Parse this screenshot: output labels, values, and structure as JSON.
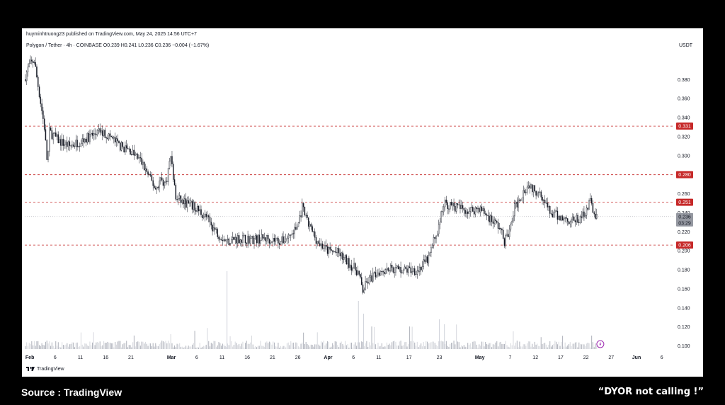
{
  "header": {
    "publish_line": "huyminhtruong23 published on TradingView.com, May 24, 2025 14:56 UTC+7",
    "symbol_line": "Polygon / Tether · 4h · COINBASE  O0.239  H0.241  L0.236  C0.236  −0.004 (−1.67%)",
    "currency": "USDT"
  },
  "footer": {
    "source": "Source : TradingView",
    "disclaimer": "“DYOR  not calling !”",
    "logo_text": "TradingView"
  },
  "chart_data": {
    "type": "candlestick",
    "symbol": "Polygon / Tether",
    "interval": "4h",
    "exchange": "COINBASE",
    "last_ohlc": {
      "open": 0.239,
      "high": 0.241,
      "low": 0.236,
      "close": 0.236,
      "change": -0.004,
      "change_pct": -1.67
    },
    "ylim": [
      0.09,
      0.41
    ],
    "y_ticks": [
      0.1,
      0.12,
      0.14,
      0.16,
      0.18,
      0.2,
      0.22,
      0.24,
      0.26,
      0.28,
      0.3,
      0.32,
      0.34,
      0.36,
      0.38
    ],
    "y_tick_labels": [
      "0.100",
      "0.120",
      "0.140",
      "0.160",
      "0.180",
      "0.200",
      "0.220",
      "0.240",
      "0.260",
      "0.280",
      "0.300",
      "0.320",
      "0.340",
      "0.360",
      "0.380"
    ],
    "x_range": [
      "2025-01-31",
      "2025-06-08"
    ],
    "x_ticks": [
      {
        "date": "2025-02-01",
        "label": "Feb",
        "bold": true
      },
      {
        "date": "2025-02-06",
        "label": "6"
      },
      {
        "date": "2025-02-11",
        "label": "11"
      },
      {
        "date": "2025-02-16",
        "label": "16"
      },
      {
        "date": "2025-02-21",
        "label": "21"
      },
      {
        "date": "2025-03-01",
        "label": "Mar",
        "bold": true
      },
      {
        "date": "2025-03-06",
        "label": "6"
      },
      {
        "date": "2025-03-11",
        "label": "11"
      },
      {
        "date": "2025-03-16",
        "label": "16"
      },
      {
        "date": "2025-03-21",
        "label": "21"
      },
      {
        "date": "2025-03-26",
        "label": "26"
      },
      {
        "date": "2025-04-01",
        "label": "Apr",
        "bold": true
      },
      {
        "date": "2025-04-06",
        "label": "6"
      },
      {
        "date": "2025-04-11",
        "label": "11"
      },
      {
        "date": "2025-04-17",
        "label": "17"
      },
      {
        "date": "2025-04-23",
        "label": "23"
      },
      {
        "date": "2025-05-01",
        "label": "May",
        "bold": true
      },
      {
        "date": "2025-05-07",
        "label": "7"
      },
      {
        "date": "2025-05-12",
        "label": "12"
      },
      {
        "date": "2025-05-17",
        "label": "17"
      },
      {
        "date": "2025-05-22",
        "label": "22"
      },
      {
        "date": "2025-05-27",
        "label": "27"
      },
      {
        "date": "2025-06-01",
        "label": "Jun",
        "bold": true
      },
      {
        "date": "2025-06-06",
        "label": "6"
      }
    ],
    "horizontal_levels": [
      {
        "value": 0.331,
        "label": "0.331",
        "color": "#c62828"
      },
      {
        "value": 0.28,
        "label": "0.280",
        "color": "#c62828"
      },
      {
        "value": 0.251,
        "label": "0.251",
        "color": "#c62828"
      },
      {
        "value": 0.206,
        "label": "0.206",
        "color": "#c62828"
      }
    ],
    "last_price": {
      "value": 0.236,
      "label": "0.236",
      "countdown": "03:29"
    },
    "price_path": [
      {
        "date": "2025-01-31",
        "price": 0.38
      },
      {
        "date": "2025-02-01",
        "price": 0.395
      },
      {
        "date": "2025-02-02",
        "price": 0.4
      },
      {
        "date": "2025-02-03",
        "price": 0.365
      },
      {
        "date": "2025-02-04",
        "price": 0.33
      },
      {
        "date": "2025-02-04.6",
        "price": 0.29
      },
      {
        "date": "2025-02-05",
        "price": 0.325
      },
      {
        "date": "2025-02-07",
        "price": 0.315
      },
      {
        "date": "2025-02-09",
        "price": 0.31
      },
      {
        "date": "2025-02-11",
        "price": 0.315
      },
      {
        "date": "2025-02-13",
        "price": 0.32
      },
      {
        "date": "2025-02-15",
        "price": 0.325
      },
      {
        "date": "2025-02-17",
        "price": 0.32
      },
      {
        "date": "2025-02-19",
        "price": 0.31
      },
      {
        "date": "2025-02-21",
        "price": 0.305
      },
      {
        "date": "2025-02-23",
        "price": 0.295
      },
      {
        "date": "2025-02-25",
        "price": 0.275
      },
      {
        "date": "2025-02-26",
        "price": 0.265
      },
      {
        "date": "2025-02-27",
        "price": 0.275
      },
      {
        "date": "2025-02-28",
        "price": 0.27
      },
      {
        "date": "2025-03-01",
        "price": 0.3
      },
      {
        "date": "2025-03-02",
        "price": 0.255
      },
      {
        "date": "2025-03-04",
        "price": 0.25
      },
      {
        "date": "2025-03-06",
        "price": 0.245
      },
      {
        "date": "2025-03-08",
        "price": 0.235
      },
      {
        "date": "2025-03-10",
        "price": 0.22
      },
      {
        "date": "2025-03-12",
        "price": 0.21
      },
      {
        "date": "2025-03-14",
        "price": 0.213
      },
      {
        "date": "2025-03-17",
        "price": 0.212
      },
      {
        "date": "2025-03-20",
        "price": 0.213
      },
      {
        "date": "2025-03-23",
        "price": 0.21
      },
      {
        "date": "2025-03-25",
        "price": 0.218
      },
      {
        "date": "2025-03-26",
        "price": 0.225
      },
      {
        "date": "2025-03-27",
        "price": 0.245
      },
      {
        "date": "2025-03-28",
        "price": 0.23
      },
      {
        "date": "2025-03-30",
        "price": 0.21
      },
      {
        "date": "2025-04-01",
        "price": 0.2
      },
      {
        "date": "2025-04-03",
        "price": 0.198
      },
      {
        "date": "2025-04-05",
        "price": 0.188
      },
      {
        "date": "2025-04-07",
        "price": 0.178
      },
      {
        "date": "2025-04-08",
        "price": 0.158
      },
      {
        "date": "2025-04-09",
        "price": 0.168
      },
      {
        "date": "2025-04-11",
        "price": 0.178
      },
      {
        "date": "2025-04-13",
        "price": 0.182
      },
      {
        "date": "2025-04-16",
        "price": 0.18
      },
      {
        "date": "2025-04-19",
        "price": 0.18
      },
      {
        "date": "2025-04-21",
        "price": 0.192
      },
      {
        "date": "2025-04-22",
        "price": 0.21
      },
      {
        "date": "2025-04-23",
        "price": 0.225
      },
      {
        "date": "2025-04-24",
        "price": 0.25
      },
      {
        "date": "2025-04-25",
        "price": 0.248
      },
      {
        "date": "2025-04-27",
        "price": 0.245
      },
      {
        "date": "2025-04-29",
        "price": 0.242
      },
      {
        "date": "2025-05-01",
        "price": 0.245
      },
      {
        "date": "2025-05-03",
        "price": 0.235
      },
      {
        "date": "2025-05-05",
        "price": 0.225
      },
      {
        "date": "2025-05-06",
        "price": 0.21
      },
      {
        "date": "2025-05-07",
        "price": 0.22
      },
      {
        "date": "2025-05-08",
        "price": 0.245
      },
      {
        "date": "2025-05-10",
        "price": 0.265
      },
      {
        "date": "2025-05-11",
        "price": 0.27
      },
      {
        "date": "2025-05-12",
        "price": 0.262
      },
      {
        "date": "2025-05-13",
        "price": 0.265
      },
      {
        "date": "2025-05-14",
        "price": 0.25
      },
      {
        "date": "2025-05-15",
        "price": 0.24
      },
      {
        "date": "2025-05-17",
        "price": 0.235
      },
      {
        "date": "2025-05-19",
        "price": 0.232
      },
      {
        "date": "2025-05-21",
        "price": 0.233
      },
      {
        "date": "2025-05-22",
        "price": 0.242
      },
      {
        "date": "2025-05-23",
        "price": 0.252
      },
      {
        "date": "2025-05-24",
        "price": 0.236
      }
    ]
  }
}
